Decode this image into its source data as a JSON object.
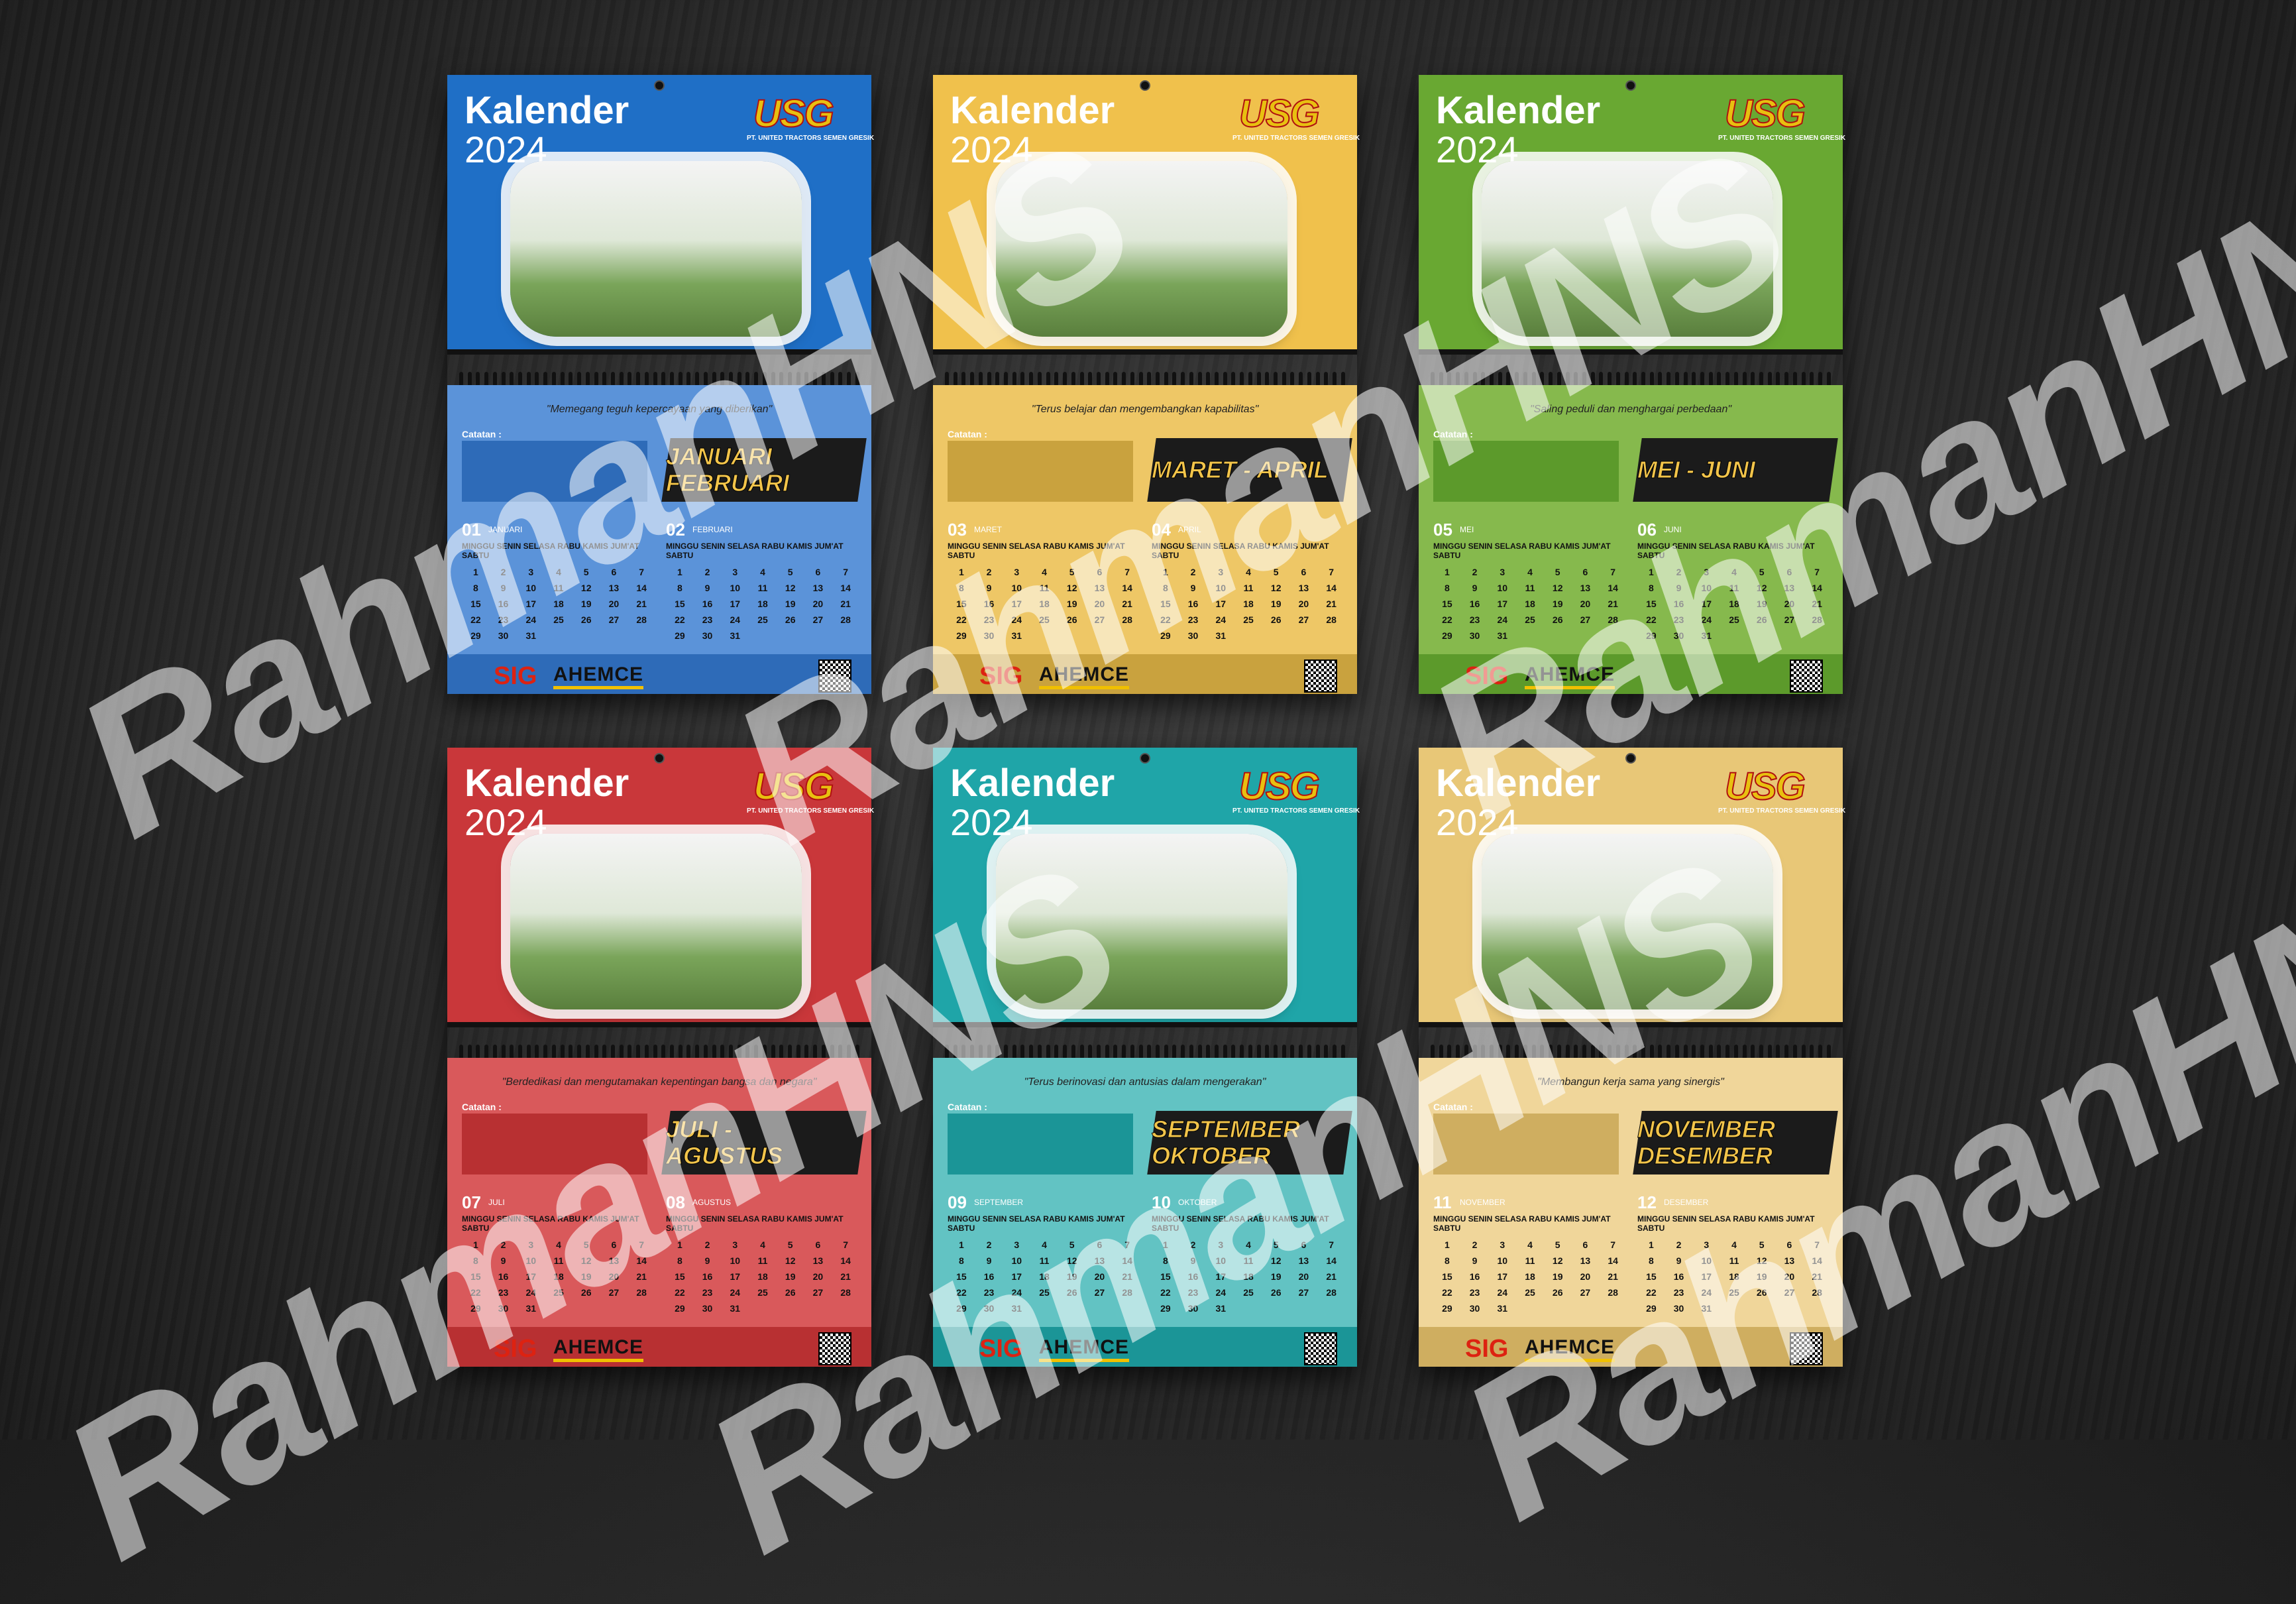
{
  "calendars": [
    {
      "title": "Kalender",
      "year": "2024",
      "logo": "USG",
      "company": "PT. UNITED TRACTORS SEMEN GRESIK",
      "quote": "\"Memegang teguh kepercayaan yang diberikan\"",
      "catatan": "Catatan :",
      "months_label": "JANUARI FEBRUARI",
      "month_a": {
        "num": "01",
        "name": "JANUARI"
      },
      "month_b": {
        "num": "02",
        "name": "FEBRUARI"
      },
      "days": "MINGGU SENIN SELASA RABU KAMIS JUM'AT SABTU",
      "footer": {
        "sig": "SIG",
        "ahemce": "AHEMCE"
      },
      "colors": {
        "top": "#1f6fc6",
        "bottom": "#5b93d9",
        "footer": "#2e6bb8"
      }
    },
    {
      "title": "Kalender",
      "year": "2024",
      "logo": "USG",
      "company": "PT. UNITED TRACTORS SEMEN GRESIK",
      "quote": "\"Terus belajar dan mengembangkan kapabilitas\"",
      "catatan": "Catatan :",
      "months_label": "MARET - APRIL",
      "month_a": {
        "num": "03",
        "name": "MARET"
      },
      "month_b": {
        "num": "04",
        "name": "APRIL"
      },
      "days": "MINGGU SENIN SELASA RABU KAMIS JUM'AT SABTU",
      "footer": {
        "sig": "SIG",
        "ahemce": "AHEMCE"
      },
      "colors": {
        "top": "#f0c14c",
        "bottom": "#eec766",
        "footer": "#c9a23e"
      }
    },
    {
      "title": "Kalender",
      "year": "2024",
      "logo": "USG",
      "company": "PT. UNITED TRACTORS SEMEN GRESIK",
      "quote": "\"Saling peduli dan menghargai perbedaan\"",
      "catatan": "Catatan :",
      "months_label": "MEI - JUNI",
      "month_a": {
        "num": "05",
        "name": "MEI"
      },
      "month_b": {
        "num": "06",
        "name": "JUNI"
      },
      "days": "MINGGU SENIN SELASA RABU KAMIS JUM'AT SABTU",
      "footer": {
        "sig": "SIG",
        "ahemce": "AHEMCE"
      },
      "colors": {
        "top": "#69a832",
        "bottom": "#86b94d",
        "footer": "#5c9a2b"
      }
    },
    {
      "title": "Kalender",
      "year": "2024",
      "logo": "USG",
      "company": "PT. UNITED TRACTORS SEMEN GRESIK",
      "quote": "\"Berdedikasi dan mengutamakan kepentingan bangsa dan negara\"",
      "catatan": "Catatan :",
      "months_label": "JULI - AGUSTUS",
      "month_a": {
        "num": "07",
        "name": "JULI"
      },
      "month_b": {
        "num": "08",
        "name": "AGUSTUS"
      },
      "days": "MINGGU SENIN SELASA RABU KAMIS JUM'AT SABTU",
      "footer": {
        "sig": "SIG",
        "ahemce": "AHEMCE"
      },
      "colors": {
        "top": "#c9373a",
        "bottom": "#d9595b",
        "footer": "#b83032"
      }
    },
    {
      "title": "Kalender",
      "year": "2024",
      "logo": "USG",
      "company": "PT. UNITED TRACTORS SEMEN GRESIK",
      "quote": "\"Terus berinovasi dan antusias dalam mengerakan\"",
      "catatan": "Catatan :",
      "months_label": "SEPTEMBER OKTOBER",
      "month_a": {
        "num": "09",
        "name": "SEPTEMBER"
      },
      "month_b": {
        "num": "10",
        "name": "OKTOBER"
      },
      "days": "MINGGU SENIN SELASA RABU KAMIS JUM'AT SABTU",
      "footer": {
        "sig": "SIG",
        "ahemce": "AHEMCE"
      },
      "colors": {
        "top": "#1fa5a8",
        "bottom": "#62c3c3",
        "footer": "#1b9597"
      }
    },
    {
      "title": "Kalender",
      "year": "2024",
      "logo": "USG",
      "company": "PT. UNITED TRACTORS SEMEN GRESIK",
      "quote": "\"Membangun kerja sama yang sinergis\"",
      "catatan": "Catatan :",
      "months_label": "NOVEMBER DESEMBER",
      "month_a": {
        "num": "11",
        "name": "NOVEMBER"
      },
      "month_b": {
        "num": "12",
        "name": "DESEMBER"
      },
      "days": "MINGGU SENIN SELASA RABU KAMIS JUM'AT SABTU",
      "footer": {
        "sig": "SIG",
        "ahemce": "AHEMCE"
      },
      "colors": {
        "top": "#e8c777",
        "bottom": "#f0d69a",
        "footer": "#cfae60"
      }
    }
  ],
  "watermark": "RahmanHNS"
}
